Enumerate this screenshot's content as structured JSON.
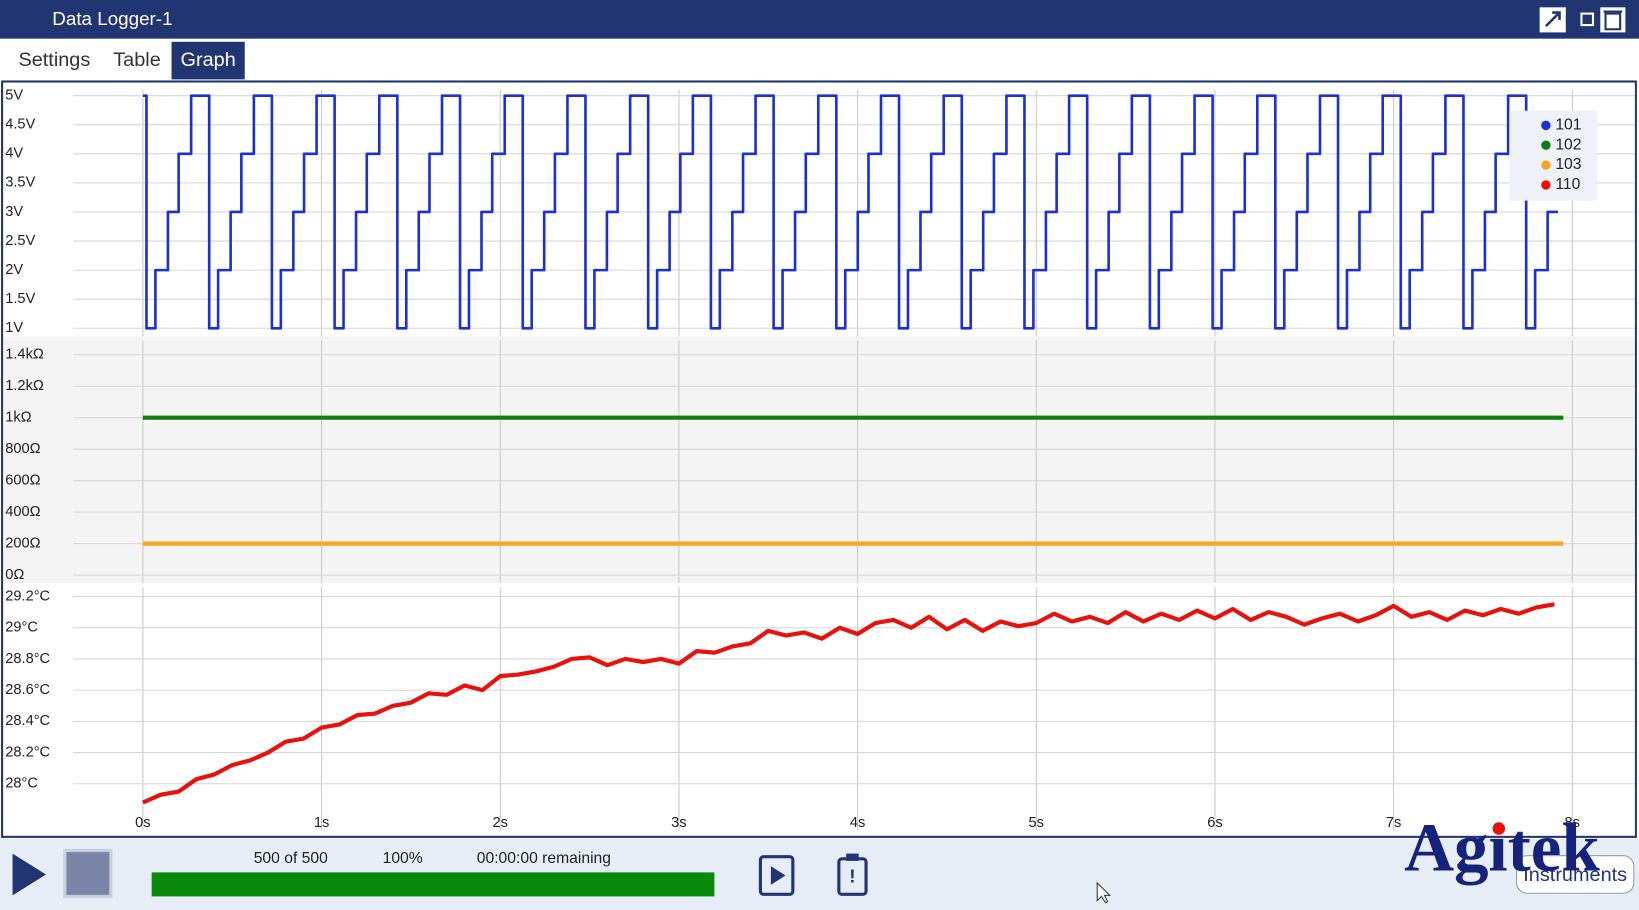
{
  "window": {
    "title": "Data Logger-1"
  },
  "tabs": [
    "Settings",
    "Table",
    "Graph"
  ],
  "active_tab": 2,
  "chart_data": [
    {
      "type": "line",
      "step": "post",
      "grid": true,
      "legend": "top-right",
      "ylim": [
        0.86,
        5.1
      ],
      "yticks": [
        {
          "value": 1,
          "label": "1V"
        },
        {
          "value": 1.5,
          "label": "1.5V"
        },
        {
          "value": 2,
          "label": "2V"
        },
        {
          "value": 2.5,
          "label": "2.5V"
        },
        {
          "value": 3,
          "label": "3V"
        },
        {
          "value": 3.5,
          "label": "3.5V"
        },
        {
          "value": 4,
          "label": "4V"
        },
        {
          "value": 4.5,
          "label": "4.5V"
        },
        {
          "value": 5,
          "label": "5V"
        }
      ],
      "series": [
        {
          "name": "101",
          "color": "#1a2fd6",
          "x": [
            0,
            0.02,
            0.07,
            0.14,
            0.2,
            0.27,
            0.351,
            0.371,
            0.421,
            0.491,
            0.551,
            0.621,
            0.702,
            0.722,
            0.772,
            0.842,
            0.902,
            0.972,
            1.053,
            1.073,
            1.123,
            1.193,
            1.253,
            1.323,
            1.404,
            1.424,
            1.474,
            1.544,
            1.604,
            1.674,
            1.755,
            1.775,
            1.825,
            1.895,
            1.955,
            2.025,
            2.106,
            2.126,
            2.176,
            2.246,
            2.306,
            2.376,
            2.457,
            2.477,
            2.527,
            2.597,
            2.657,
            2.727,
            2.808,
            2.828,
            2.878,
            2.948,
            3.008,
            3.078,
            3.159,
            3.179,
            3.229,
            3.299,
            3.359,
            3.429,
            3.51,
            3.53,
            3.58,
            3.65,
            3.71,
            3.78,
            3.861,
            3.881,
            3.931,
            4.001,
            4.061,
            4.131,
            4.212,
            4.232,
            4.282,
            4.352,
            4.412,
            4.482,
            4.563,
            4.583,
            4.633,
            4.703,
            4.763,
            4.833,
            4.914,
            4.934,
            4.984,
            5.054,
            5.114,
            5.184,
            5.265,
            5.285,
            5.335,
            5.405,
            5.465,
            5.535,
            5.616,
            5.636,
            5.686,
            5.756,
            5.816,
            5.886,
            5.967,
            5.987,
            6.037,
            6.107,
            6.167,
            6.237,
            6.318,
            6.338,
            6.388,
            6.458,
            6.518,
            6.588,
            6.669,
            6.689,
            6.739,
            6.809,
            6.869,
            6.939,
            7.02,
            7.04,
            7.09,
            7.16,
            7.22,
            7.29,
            7.371,
            7.391,
            7.441,
            7.511,
            7.571,
            7.641,
            7.722,
            7.742,
            7.792,
            7.862,
            7.92
          ],
          "values": [
            5,
            1,
            2,
            3,
            4,
            5,
            5,
            1,
            2,
            3,
            4,
            5,
            5,
            1,
            2,
            3,
            4,
            5,
            5,
            1,
            2,
            3,
            4,
            5,
            5,
            1,
            2,
            3,
            4,
            5,
            5,
            1,
            2,
            3,
            4,
            5,
            5,
            1,
            2,
            3,
            4,
            5,
            5,
            1,
            2,
            3,
            4,
            5,
            5,
            1,
            2,
            3,
            4,
            5,
            5,
            1,
            2,
            3,
            4,
            5,
            5,
            1,
            2,
            3,
            4,
            5,
            5,
            1,
            2,
            3,
            4,
            5,
            5,
            1,
            2,
            3,
            4,
            5,
            5,
            1,
            2,
            3,
            4,
            5,
            5,
            1,
            2,
            3,
            4,
            5,
            5,
            1,
            2,
            3,
            4,
            5,
            5,
            1,
            2,
            3,
            4,
            5,
            5,
            1,
            2,
            3,
            4,
            5,
            5,
            1,
            2,
            3,
            4,
            5,
            5,
            1,
            2,
            3,
            4,
            5,
            5,
            1,
            2,
            3,
            4,
            5,
            5,
            1,
            2,
            3,
            4,
            5,
            5,
            1,
            2,
            3,
            3
          ]
        }
      ]
    },
    {
      "type": "line",
      "grid": true,
      "ylim": [
        -50,
        1490
      ],
      "yticks": [
        {
          "value": 0,
          "label": "0Ω"
        },
        {
          "value": 200,
          "label": "200Ω"
        },
        {
          "value": 400,
          "label": "400Ω"
        },
        {
          "value": 600,
          "label": "600Ω"
        },
        {
          "value": 800,
          "label": "800Ω"
        },
        {
          "value": 1000,
          "label": "1kΩ"
        },
        {
          "value": 1200,
          "label": "1.2kΩ"
        },
        {
          "value": 1400,
          "label": "1.4kΩ"
        }
      ],
      "series": [
        {
          "name": "102",
          "color": "#0f7d0f",
          "x": [
            0,
            7.95
          ],
          "values": [
            1000,
            1000
          ]
        },
        {
          "name": "103",
          "color": "#f5a623",
          "x": [
            0,
            7.95
          ],
          "values": [
            200,
            200
          ]
        }
      ]
    },
    {
      "type": "line",
      "grid": true,
      "xlim": [
        -0.39,
        8.35
      ],
      "xticks": [
        {
          "value": 0,
          "label": "0s"
        },
        {
          "value": 1,
          "label": "1s"
        },
        {
          "value": 2,
          "label": "2s"
        },
        {
          "value": 3,
          "label": "3s"
        },
        {
          "value": 4,
          "label": "4s"
        },
        {
          "value": 5,
          "label": "5s"
        },
        {
          "value": 6,
          "label": "6s"
        },
        {
          "value": 7,
          "label": "7s"
        },
        {
          "value": 8,
          "label": "8s"
        }
      ],
      "ylim": [
        27.7,
        29.26
      ],
      "yticks": [
        {
          "value": 28,
          "label": "28°C"
        },
        {
          "value": 28.2,
          "label": "28.2°C"
        },
        {
          "value": 28.4,
          "label": "28.4°C"
        },
        {
          "value": 28.6,
          "label": "28.6°C"
        },
        {
          "value": 28.8,
          "label": "28.8°C"
        },
        {
          "value": 29,
          "label": "29°C"
        },
        {
          "value": 29.2,
          "label": "29.2°C"
        }
      ],
      "series": [
        {
          "name": "110",
          "color": "#e8120c",
          "x": [
            0,
            0.1,
            0.2,
            0.3,
            0.4,
            0.5,
            0.6,
            0.7,
            0.8,
            0.9,
            1,
            1.1,
            1.2,
            1.3,
            1.4,
            1.5,
            1.6,
            1.7,
            1.8,
            1.9,
            2,
            2.1,
            2.2,
            2.3,
            2.4,
            2.5,
            2.6,
            2.7,
            2.8,
            2.9,
            3,
            3.1,
            3.2,
            3.3,
            3.4,
            3.5,
            3.6,
            3.7,
            3.8,
            3.9,
            4,
            4.1,
            4.2,
            4.3,
            4.4,
            4.5,
            4.6,
            4.7,
            4.8,
            4.9,
            5,
            5.1,
            5.2,
            5.3,
            5.4,
            5.5,
            5.6,
            5.7,
            5.8,
            5.9,
            6,
            6.1,
            6.2,
            6.3,
            6.4,
            6.5,
            6.6,
            6.7,
            6.8,
            6.9,
            7,
            7.1,
            7.2,
            7.3,
            7.4,
            7.5,
            7.6,
            7.7,
            7.8,
            7.9
          ],
          "values": [
            27.88,
            27.93,
            27.95,
            28.03,
            28.06,
            28.12,
            28.15,
            28.2,
            28.27,
            28.29,
            28.36,
            28.38,
            28.44,
            28.45,
            28.5,
            28.52,
            28.58,
            28.57,
            28.63,
            28.6,
            28.69,
            28.7,
            28.72,
            28.75,
            28.8,
            28.81,
            28.76,
            28.8,
            28.78,
            28.8,
            28.77,
            28.85,
            28.84,
            28.88,
            28.9,
            28.98,
            28.95,
            28.97,
            28.93,
            29,
            28.96,
            29.03,
            29.05,
            29,
            29.07,
            28.99,
            29.05,
            28.98,
            29.04,
            29.01,
            29.03,
            29.09,
            29.04,
            29.07,
            29.03,
            29.1,
            29.04,
            29.09,
            29.05,
            29.11,
            29.06,
            29.12,
            29.05,
            29.1,
            29.07,
            29.02,
            29.06,
            29.09,
            29.04,
            29.08,
            29.14,
            29.07,
            29.1,
            29.05,
            29.11,
            29.08,
            29.12,
            29.09,
            29.13,
            29.15
          ]
        }
      ]
    }
  ],
  "status": {
    "samples": "500 of 500",
    "percent": "100%",
    "remaining": "00:00:00 remaining"
  },
  "logo": {
    "name": "Agitek",
    "tagline": "Instruments"
  }
}
